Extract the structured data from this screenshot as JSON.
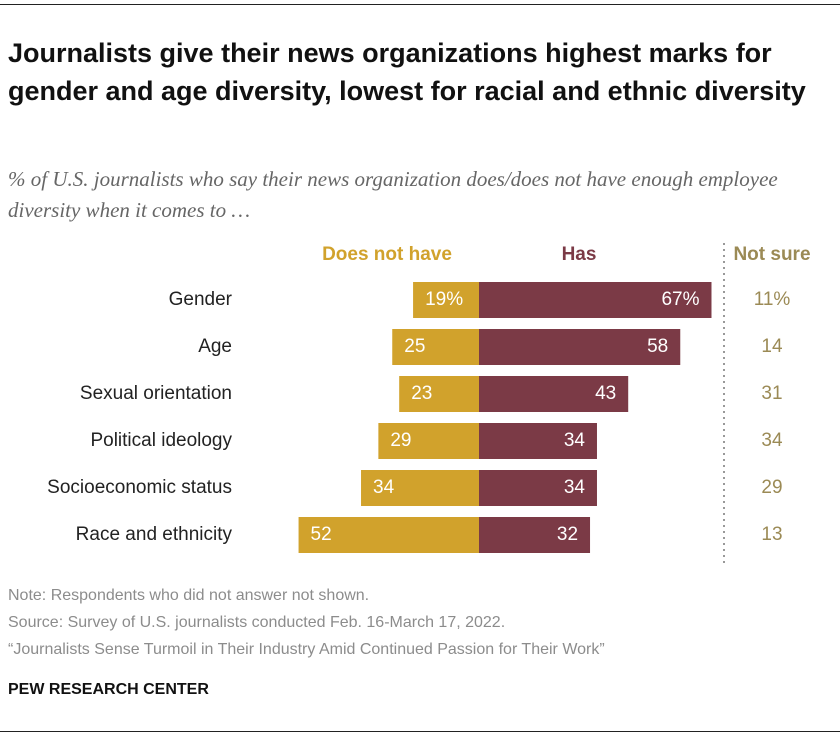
{
  "chart_data": {
    "type": "diverging_bar",
    "title": "Journalists give their news organizations highest marks for gender and age diversity, lowest for racial and ethnic diversity",
    "subtitle": "% of U.S. journalists who say their news organization does/does not have enough employee diversity when it comes to …",
    "categories": [
      "Gender",
      "Age",
      "Sexual orientation",
      "Political ideology",
      "Socioeconomic status",
      "Race and ethnicity"
    ],
    "series": [
      {
        "name": "Does not have",
        "color": "#d1a22c",
        "values": [
          19,
          25,
          23,
          29,
          34,
          52
        ],
        "value_labels": [
          "19%",
          "25",
          "23",
          "29",
          "34",
          "52"
        ]
      },
      {
        "name": "Has",
        "color": "#7b3a46",
        "values": [
          67,
          58,
          43,
          34,
          34,
          32
        ],
        "value_labels": [
          "67%",
          "58",
          "43",
          "34",
          "34",
          "32"
        ]
      }
    ],
    "not_sure": {
      "name": "Not sure",
      "color": "#9b8a55",
      "values": [
        11,
        14,
        31,
        34,
        29,
        13
      ],
      "value_labels": [
        "11%",
        "14",
        "31",
        "34",
        "29",
        "13"
      ]
    },
    "note": "Note: Respondents who did not answer not shown.",
    "source": "Source: Survey of U.S. journalists conducted Feb. 16-March 17, 2022.",
    "report": "“Journalists Sense Turmoil in Their Industry Amid Continued Passion for Their Work”",
    "brand": "PEW RESEARCH CENTER"
  }
}
